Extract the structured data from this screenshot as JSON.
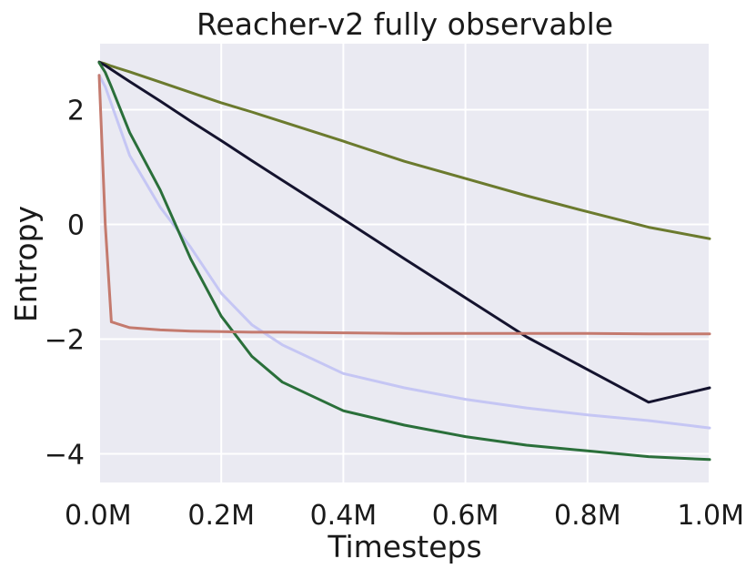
{
  "chart_data": {
    "type": "line",
    "title": "Reacher-v2 fully observable",
    "xlabel": "Timesteps",
    "ylabel": "Entropy",
    "xlim": [
      0,
      1000000
    ],
    "ylim": [
      -4.5,
      3.15
    ],
    "grid": true,
    "background": "#eaeaf2",
    "x_ticks": [
      {
        "value": 0,
        "label": "0.0M"
      },
      {
        "value": 200000,
        "label": "0.2M"
      },
      {
        "value": 400000,
        "label": "0.4M"
      },
      {
        "value": 600000,
        "label": "0.6M"
      },
      {
        "value": 800000,
        "label": "0.8M"
      },
      {
        "value": 1000000,
        "label": "1.0M"
      }
    ],
    "y_ticks": [
      {
        "value": 2,
        "label": "2"
      },
      {
        "value": 0,
        "label": "0"
      },
      {
        "value": -2,
        "label": "−2"
      },
      {
        "value": -4,
        "label": "−4"
      }
    ],
    "x": [
      0,
      10000,
      20000,
      50000,
      100000,
      150000,
      200000,
      250000,
      300000,
      400000,
      500000,
      600000,
      700000,
      800000,
      900000,
      1000000
    ],
    "series": [
      {
        "color": "#6b7a2e",
        "values": [
          2.83,
          2.8,
          2.76,
          2.66,
          2.48,
          2.3,
          2.12,
          1.96,
          1.79,
          1.45,
          1.1,
          0.8,
          0.5,
          0.22,
          -0.05,
          -0.25
        ]
      },
      {
        "color": "#14132e",
        "values": [
          2.83,
          2.77,
          2.7,
          2.49,
          2.15,
          1.8,
          1.46,
          1.11,
          0.77,
          0.09,
          -0.6,
          -1.28,
          -1.96,
          -2.53,
          -3.1,
          -2.85
        ]
      },
      {
        "color": "#c5c6f4",
        "values": [
          2.6,
          2.4,
          2.1,
          1.2,
          0.3,
          -0.4,
          -1.2,
          -1.75,
          -2.1,
          -2.6,
          -2.85,
          -3.05,
          -3.2,
          -3.32,
          -3.42,
          -3.55
        ]
      },
      {
        "color": "#2a6f3a",
        "values": [
          2.82,
          2.65,
          2.4,
          1.6,
          0.6,
          -0.6,
          -1.6,
          -2.3,
          -2.75,
          -3.25,
          -3.5,
          -3.7,
          -3.85,
          -3.95,
          -4.05,
          -4.1
        ]
      },
      {
        "color": "#c47a6e",
        "values": [
          2.6,
          0.0,
          -1.7,
          -1.8,
          -1.84,
          -1.86,
          -1.87,
          -1.88,
          -1.88,
          -1.89,
          -1.9,
          -1.9,
          -1.9,
          -1.9,
          -1.91,
          -1.91
        ]
      }
    ]
  }
}
